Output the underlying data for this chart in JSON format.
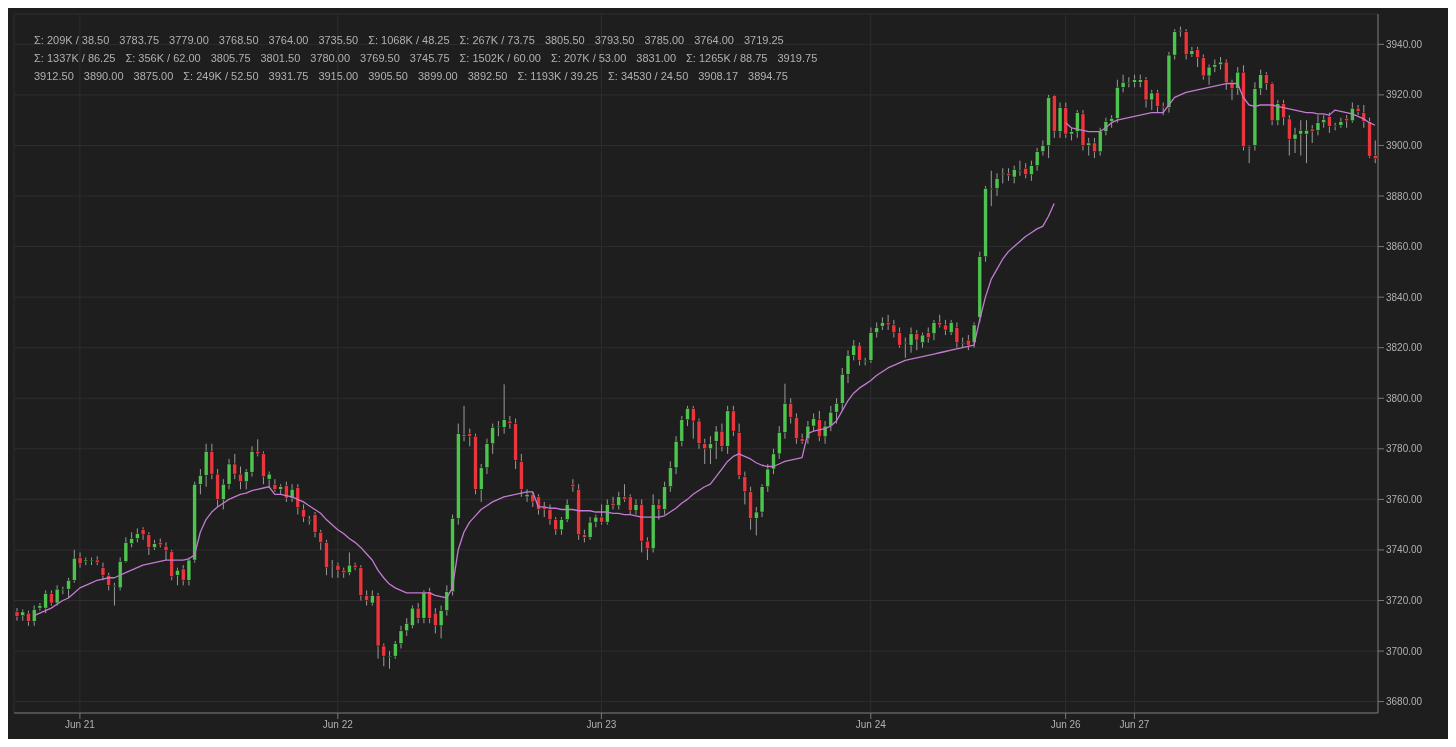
{
  "chart_data": {
    "type": "candlestick",
    "categories": [
      null,
      null,
      null,
      null,
      null,
      null,
      null,
      null,
      null,
      null,
      null,
      "Jun 21",
      null,
      null,
      null,
      null,
      null,
      null,
      null,
      null,
      null,
      null,
      null,
      null,
      null,
      null,
      null,
      null,
      null,
      null,
      null,
      null,
      null,
      null,
      null,
      null,
      null,
      null,
      null,
      null,
      null,
      null,
      null,
      null,
      null,
      null,
      null,
      null,
      null,
      null,
      null,
      null,
      null,
      null,
      null,
      null,
      "Jun 22",
      null,
      null,
      null,
      null,
      null,
      null,
      null,
      null,
      null,
      null,
      null,
      null,
      null,
      null,
      null,
      null,
      null,
      null,
      null,
      null,
      null,
      null,
      null,
      null,
      null,
      null,
      null,
      null,
      null,
      null,
      null,
      null,
      null,
      null,
      null,
      null,
      null,
      null,
      null,
      null,
      null,
      null,
      null,
      null,
      null,
      "Jun 23",
      null,
      null,
      null,
      null,
      null,
      null,
      null,
      null,
      null,
      null,
      null,
      null,
      null,
      null,
      null,
      null,
      null,
      null,
      null,
      null,
      null,
      null,
      null,
      null,
      null,
      null,
      null,
      null,
      null,
      null,
      null,
      null,
      null,
      null,
      null,
      null,
      null,
      null,
      null,
      null,
      null,
      null,
      null,
      null,
      null,
      null,
      "Jun 24",
      null,
      null,
      null,
      null,
      null,
      null,
      null,
      null,
      null,
      null,
      null,
      null,
      null,
      null,
      null,
      null,
      null,
      null,
      null,
      null,
      null,
      null,
      null,
      null,
      null,
      null,
      null,
      null,
      null,
      null,
      null,
      null,
      null,
      "Jun 26",
      null,
      null,
      null,
      null,
      null,
      null,
      null,
      null,
      null,
      null,
      null,
      "Jun 27",
      null,
      null,
      null,
      null,
      null,
      null,
      null,
      null,
      null,
      null,
      null,
      null,
      null,
      null,
      null,
      null,
      null,
      null,
      null,
      null,
      null,
      null,
      null,
      null,
      null,
      null,
      null,
      null,
      null,
      null,
      null,
      null,
      null,
      null,
      null,
      null,
      null,
      null,
      null,
      null,
      null,
      null
    ],
    "ohlc": [
      [
        3715.5,
        3717,
        3712,
        3713.75
      ],
      [
        3714,
        3716.5,
        3712,
        3715.5
      ],
      [
        3715,
        3716,
        3710,
        3711.75
      ],
      [
        3711.75,
        3718,
        3710,
        3716.5
      ],
      [
        3717,
        3719,
        3716,
        3718
      ],
      [
        3717,
        3724,
        3715,
        3722.75
      ],
      [
        3722.75,
        3724,
        3718,
        3719
      ],
      [
        3719,
        3726,
        3718,
        3724.5
      ],
      [
        3724,
        3725.5,
        3722.5,
        3724.25
      ],
      [
        3724.5,
        3729,
        3721,
        3728
      ],
      [
        3728,
        3740,
        3727,
        3736.75
      ],
      [
        3737,
        3739,
        3733,
        3734.5
      ],
      [
        3735.5,
        3737,
        3734,
        3736
      ],
      [
        3736,
        3737,
        3734,
        3736
      ],
      [
        3736,
        3737.5,
        3734,
        3735
      ],
      [
        3733,
        3735,
        3728,
        3730
      ],
      [
        3730,
        3731,
        3724,
        3726
      ],
      [
        3726,
        3727,
        3718,
        3726
      ],
      [
        3725,
        3737,
        3724,
        3735.5
      ],
      [
        3735.5,
        3745,
        3735,
        3743
      ],
      [
        3742.5,
        3747,
        3741,
        3744.5
      ],
      [
        3744.5,
        3748.5,
        3743,
        3746.5
      ],
      [
        3748,
        3749,
        3744,
        3746
      ],
      [
        3746,
        3747,
        3738,
        3741
      ],
      [
        3741,
        3744,
        3740,
        3742.5
      ],
      [
        3743,
        3744.5,
        3741,
        3742
      ],
      [
        3741.5,
        3743,
        3736,
        3739.75
      ],
      [
        3739.25,
        3740,
        3728,
        3729.5
      ],
      [
        3730,
        3733,
        3726,
        3732
      ],
      [
        3732.5,
        3734,
        3726,
        3728
      ],
      [
        3728,
        3737,
        3726,
        3736
      ],
      [
        3736,
        3767,
        3735,
        3766
      ],
      [
        3766,
        3772,
        3762,
        3769.5
      ],
      [
        3769.5,
        3782,
        3765,
        3779
      ],
      [
        3779,
        3782,
        3768,
        3770
      ],
      [
        3770,
        3772,
        3757,
        3760
      ],
      [
        3760,
        3768,
        3756,
        3766
      ],
      [
        3766,
        3776,
        3764,
        3774
      ],
      [
        3774,
        3778,
        3768,
        3770
      ],
      [
        3770,
        3773,
        3764,
        3767
      ],
      [
        3767,
        3772,
        3764,
        3771
      ],
      [
        3770.75,
        3781,
        3769,
        3779
      ],
      [
        3779,
        3783.75,
        3777,
        3778
      ],
      [
        3778,
        3779,
        3766,
        3769
      ],
      [
        3768,
        3771,
        3765,
        3770
      ],
      [
        3766,
        3768,
        3763,
        3764
      ],
      [
        3764,
        3766,
        3762,
        3765
      ],
      [
        3765.5,
        3767,
        3759,
        3760.5
      ],
      [
        3760.5,
        3766,
        3759,
        3764
      ],
      [
        3764.75,
        3766,
        3754,
        3756.75
      ],
      [
        3756,
        3758,
        3751,
        3753
      ],
      [
        3752,
        3753.5,
        3750,
        3752
      ],
      [
        3754,
        3755,
        3745,
        3747
      ],
      [
        3747,
        3748,
        3740,
        3743
      ],
      [
        3743,
        3744,
        3730,
        3733
      ],
      [
        3734,
        3736,
        3729,
        3734
      ],
      [
        3734,
        3735,
        3729,
        3732
      ],
      [
        3732,
        3733,
        3729,
        3731
      ],
      [
        3731,
        3739,
        3730,
        3734
      ],
      [
        3734,
        3735,
        3732,
        3733
      ],
      [
        3733,
        3734,
        3720,
        3722
      ],
      [
        3722,
        3724,
        3718,
        3720
      ],
      [
        3719,
        3724,
        3718,
        3722
      ],
      [
        3722,
        3723,
        3697,
        3702
      ],
      [
        3702,
        3703,
        3694,
        3698
      ],
      [
        3698,
        3700,
        3693,
        3698
      ],
      [
        3698,
        3704,
        3697,
        3703
      ],
      [
        3703,
        3710,
        3701,
        3708
      ],
      [
        3708,
        3713,
        3706,
        3711
      ],
      [
        3710,
        3718,
        3709,
        3717
      ],
      [
        3717,
        3719,
        3711,
        3713
      ],
      [
        3713,
        3724,
        3711,
        3723
      ],
      [
        3723.5,
        3725,
        3711,
        3713
      ],
      [
        3715,
        3717,
        3707,
        3710
      ],
      [
        3710,
        3718,
        3705,
        3716
      ],
      [
        3716,
        3726,
        3714,
        3723.5
      ],
      [
        3723.5,
        3754,
        3722,
        3752.5
      ],
      [
        3752.5,
        3790,
        3750,
        3786
      ],
      [
        3785,
        3797,
        3783,
        3785.5
      ],
      [
        3786,
        3788,
        3781,
        3785
      ],
      [
        3785,
        3786,
        3762,
        3764
      ],
      [
        3764,
        3774,
        3759,
        3772.5
      ],
      [
        3772.5,
        3784,
        3770,
        3782
      ],
      [
        3782,
        3790,
        3778,
        3788.5
      ],
      [
        3789,
        3791,
        3785,
        3789
      ],
      [
        3788.5,
        3805.5,
        3786,
        3791.5
      ],
      [
        3791,
        3793,
        3788,
        3790
      ],
      [
        3790,
        3792,
        3772,
        3775.5
      ],
      [
        3775,
        3778,
        3761,
        3764
      ],
      [
        3761,
        3764,
        3759,
        3762
      ],
      [
        3762,
        3763,
        3757,
        3759
      ],
      [
        3761,
        3762,
        3754,
        3756
      ],
      [
        3757,
        3759,
        3753,
        3756
      ],
      [
        3756,
        3758,
        3750,
        3752
      ],
      [
        3752,
        3753,
        3746,
        3748
      ],
      [
        3748,
        3753,
        3746,
        3752
      ],
      [
        3752,
        3760,
        3751,
        3758
      ],
      [
        3766,
        3768,
        3763,
        3765
      ],
      [
        3764,
        3766,
        3744,
        3746
      ],
      [
        3746,
        3748,
        3743,
        3745
      ],
      [
        3745,
        3753,
        3744,
        3751
      ],
      [
        3751,
        3754,
        3749,
        3753
      ],
      [
        3753,
        3758,
        3750,
        3751
      ],
      [
        3751,
        3760,
        3750,
        3758
      ],
      [
        3758.5,
        3761,
        3756,
        3757.5
      ],
      [
        3757.5,
        3763,
        3756,
        3761
      ],
      [
        3761,
        3766,
        3759,
        3760
      ],
      [
        3761,
        3762,
        3754,
        3755.5
      ],
      [
        3755.5,
        3760,
        3754,
        3758
      ],
      [
        3758,
        3760,
        3739,
        3743.5
      ],
      [
        3743.5,
        3745,
        3736,
        3740.5
      ],
      [
        3740.5,
        3762,
        3739,
        3758
      ],
      [
        3758,
        3760,
        3752,
        3756
      ],
      [
        3756,
        3767,
        3754,
        3765
      ],
      [
        3765,
        3775,
        3763,
        3772.5
      ],
      [
        3772.5,
        3785,
        3770,
        3783
      ],
      [
        3783,
        3793,
        3781,
        3791.5
      ],
      [
        3791.5,
        3797,
        3789,
        3796
      ],
      [
        3796,
        3797,
        3784,
        3791
      ],
      [
        3791,
        3792,
        3780,
        3782
      ],
      [
        3782,
        3784,
        3774,
        3780
      ],
      [
        3780,
        3785,
        3774,
        3782
      ],
      [
        3783,
        3789,
        3776,
        3787
      ],
      [
        3787,
        3790,
        3779,
        3781
      ],
      [
        3781,
        3797,
        3778,
        3795
      ],
      [
        3795,
        3797,
        3785,
        3787
      ],
      [
        3786.5,
        3790,
        3768,
        3769.5
      ],
      [
        3769,
        3771,
        3758,
        3763
      ],
      [
        3763,
        3765,
        3748,
        3752.5
      ],
      [
        3752.5,
        3757,
        3745.75,
        3755
      ],
      [
        3755,
        3766,
        3753,
        3765
      ],
      [
        3765,
        3774,
        3763,
        3772
      ],
      [
        3772,
        3780,
        3770,
        3778
      ],
      [
        3778,
        3789,
        3776,
        3786.5
      ],
      [
        3786.5,
        3805.75,
        3784,
        3798
      ],
      [
        3798,
        3800,
        3790,
        3792.5
      ],
      [
        3792.5,
        3794,
        3782,
        3784
      ],
      [
        3784,
        3786,
        3782,
        3783
      ],
      [
        3784,
        3791,
        3782,
        3789
      ],
      [
        3789,
        3794,
        3787,
        3792
      ],
      [
        3791.5,
        3795,
        3783,
        3784.75
      ],
      [
        3784.75,
        3791,
        3782,
        3789
      ],
      [
        3789,
        3797,
        3787,
        3794.5
      ],
      [
        3794.5,
        3800,
        3790,
        3798
      ],
      [
        3798,
        3812,
        3795,
        3809.5
      ],
      [
        3809.5,
        3819,
        3806,
        3817
      ],
      [
        3817,
        3823,
        3815,
        3821
      ],
      [
        3821,
        3822,
        3813,
        3815
      ],
      [
        3815,
        3816,
        3813,
        3815
      ],
      [
        3815,
        3828,
        3814,
        3826
      ],
      [
        3826,
        3830,
        3824,
        3828
      ],
      [
        3828.5,
        3832,
        3827,
        3830
      ],
      [
        3830,
        3833,
        3827,
        3829
      ],
      [
        3829,
        3831,
        3824,
        3826
      ],
      [
        3826,
        3828,
        3820,
        3821
      ],
      [
        3822,
        3824,
        3816,
        3822
      ],
      [
        3821,
        3828,
        3818,
        3825.5
      ],
      [
        3825.5,
        3827,
        3819,
        3823
      ],
      [
        3822,
        3826,
        3820,
        3825
      ],
      [
        3826,
        3828,
        3822,
        3824
      ],
      [
        3825.5,
        3831,
        3823,
        3830
      ],
      [
        3830,
        3833,
        3828,
        3829
      ],
      [
        3829,
        3831,
        3825,
        3827
      ],
      [
        3826,
        3831,
        3825,
        3830
      ],
      [
        3828,
        3830,
        3820,
        3822
      ],
      [
        3822,
        3824,
        3820,
        3822
      ],
      [
        3823,
        3825,
        3819,
        3821
      ],
      [
        3822,
        3830,
        3820,
        3829
      ],
      [
        3832,
        3858,
        3830,
        3856
      ],
      [
        3856,
        3884,
        3854,
        3883
      ],
      [
        3883,
        3890,
        3876,
        3883
      ],
      [
        3883,
        3889,
        3880,
        3887
      ],
      [
        3888.5,
        3891,
        3885,
        3889
      ],
      [
        3889,
        3891,
        3886,
        3888
      ],
      [
        3887.5,
        3892,
        3885,
        3890.5
      ],
      [
        3890,
        3894,
        3888,
        3890
      ],
      [
        3891,
        3893,
        3887,
        3888.5
      ],
      [
        3888.5,
        3894,
        3886,
        3892
      ],
      [
        3892,
        3899,
        3890,
        3897.5
      ],
      [
        3897.5,
        3902,
        3896,
        3900
      ],
      [
        3900,
        3920,
        3895,
        3919
      ],
      [
        3919.75,
        3920,
        3903,
        3905.5
      ],
      [
        3905.5,
        3917,
        3903,
        3915
      ],
      [
        3915,
        3917,
        3903,
        3904.5
      ],
      [
        3904.5,
        3907,
        3902,
        3905.5
      ],
      [
        3905.5,
        3914,
        3903,
        3913
      ],
      [
        3912.5,
        3914,
        3898,
        3900
      ],
      [
        3900,
        3903,
        3896,
        3901
      ],
      [
        3901,
        3903,
        3895,
        3897.5
      ],
      [
        3897.5,
        3907,
        3896,
        3905.5
      ],
      [
        3905.5,
        3911,
        3904,
        3909.5
      ],
      [
        3909.5,
        3912,
        3907,
        3910.75
      ],
      [
        3910.75,
        3926,
        3909,
        3923
      ],
      [
        3923,
        3928,
        3921,
        3925
      ],
      [
        3925,
        3927,
        3923,
        3925
      ],
      [
        3925,
        3928,
        3923,
        3926
      ],
      [
        3925,
        3928,
        3923,
        3926
      ],
      [
        3926,
        3927,
        3915,
        3918
      ],
      [
        3918,
        3922,
        3914,
        3920.75
      ],
      [
        3921,
        3922,
        3913,
        3915.5
      ],
      [
        3915.5,
        3917,
        3912,
        3915
      ],
      [
        3915,
        3937,
        3913,
        3935.75
      ],
      [
        3935.75,
        3946,
        3934,
        3945
      ],
      [
        3945,
        3947,
        3943,
        3945.5
      ],
      [
        3945,
        3946,
        3934,
        3936
      ],
      [
        3936,
        3939,
        3935,
        3937.5
      ],
      [
        3938,
        3939,
        3931,
        3934.75
      ],
      [
        3934.75,
        3936,
        3926,
        3927.5
      ],
      [
        3927.5,
        3932,
        3924,
        3931
      ],
      [
        3931,
        3934,
        3929,
        3932
      ],
      [
        3932,
        3935,
        3930,
        3933
      ],
      [
        3933,
        3934,
        3922,
        3925
      ],
      [
        3925,
        3926,
        3918,
        3922.5
      ],
      [
        3922.5,
        3931,
        3920,
        3929
      ],
      [
        3929,
        3931.75,
        3898,
        3899.5
      ],
      [
        3899.5,
        3900,
        3893,
        3899
      ],
      [
        3900,
        3925,
        3898,
        3922.5
      ],
      [
        3922.5,
        3930,
        3920,
        3928
      ],
      [
        3928,
        3929,
        3922,
        3924.5
      ],
      [
        3924.5,
        3925,
        3908,
        3909.75
      ],
      [
        3909.75,
        3918,
        3908,
        3916.5
      ],
      [
        3916.5,
        3918,
        3908,
        3911
      ],
      [
        3910.5,
        3912,
        3896,
        3902.5
      ],
      [
        3902.5,
        3907,
        3897,
        3904.5
      ],
      [
        3904.5,
        3910,
        3896,
        3906
      ],
      [
        3904.5,
        3910,
        3893,
        3906
      ],
      [
        3906.5,
        3908,
        3901,
        3905.5
      ],
      [
        3906,
        3912,
        3904,
        3909
      ],
      [
        3909,
        3912,
        3907,
        3910.25
      ],
      [
        3911.5,
        3913,
        3905,
        3907.5
      ],
      [
        3908,
        3909,
        3906,
        3908
      ],
      [
        3908,
        3911,
        3907,
        3909.5
      ],
      [
        3910.75,
        3912,
        3907,
        3909.75
      ],
      [
        3909.75,
        3917,
        3909,
        3914.75
      ],
      [
        3914.75,
        3916,
        3912,
        3913.5
      ],
      [
        3913,
        3916,
        3907,
        3909.5
      ],
      [
        3909.5,
        3911,
        3895,
        3895.75
      ],
      [
        3896,
        3902,
        3893,
        3894.75
      ]
    ],
    "colors": [
      "#e8363c",
      "#4fc34f",
      "#e8363c",
      "#4fc34f",
      "#4fc34f",
      "#4fc34f",
      "#e8363c",
      "#4fc34f",
      "#4fc34f",
      "#4fc34f",
      "#4fc34f",
      "#e8363c",
      "#4fc34f",
      "#4fc34f",
      "#e8363c",
      "#e8363c",
      "#e8363c",
      "#4fc34f",
      "#4fc34f",
      "#4fc34f",
      "#4fc34f",
      "#4fc34f",
      "#e8363c",
      "#e8363c",
      "#4fc34f",
      "#e8363c",
      "#e8363c",
      "#e8363c",
      "#4fc34f",
      "#e8363c",
      "#4fc34f",
      "#4fc34f",
      "#4fc34f",
      "#4fc34f",
      "#e8363c",
      "#e8363c",
      "#4fc34f",
      "#4fc34f",
      "#e8363c",
      "#e8363c",
      "#4fc34f",
      "#4fc34f",
      "#e8363c",
      "#e8363c",
      "#4fc34f",
      "#e8363c",
      "#4fc34f",
      "#e8363c",
      "#4fc34f",
      "#e8363c",
      "#e8363c",
      "#4fc34f",
      "#e8363c",
      "#e8363c",
      "#e8363c",
      "#4fc34f",
      "#e8363c",
      "#e8363c",
      "#4fc34f",
      "#e8363c",
      "#e8363c",
      "#e8363c",
      "#4fc34f",
      "#e8363c",
      "#e8363c",
      "#4fc34f",
      "#4fc34f",
      "#4fc34f",
      "#4fc34f",
      "#4fc34f",
      "#e8363c",
      "#4fc34f",
      "#e8363c",
      "#e8363c",
      "#4fc34f",
      "#4fc34f",
      "#4fc34f",
      "#4fc34f",
      "#4fc34f",
      "#e8363c",
      "#e8363c",
      "#4fc34f",
      "#4fc34f",
      "#4fc34f",
      "#4fc34f",
      "#4fc34f",
      "#e8363c",
      "#e8363c",
      "#e8363c",
      "#4fc34f",
      "#e8363c",
      "#e8363c",
      "#e8363c",
      "#e8363c",
      "#e8363c",
      "#4fc34f",
      "#4fc34f",
      "#e8363c",
      "#e8363c",
      "#e8363c",
      "#4fc34f",
      "#4fc34f",
      "#e8363c",
      "#4fc34f",
      "#e8363c",
      "#4fc34f",
      "#e8363c",
      "#e8363c",
      "#4fc34f",
      "#e8363c",
      "#e8363c",
      "#4fc34f",
      "#e8363c",
      "#4fc34f",
      "#4fc34f",
      "#4fc34f",
      "#4fc34f",
      "#4fc34f",
      "#e8363c",
      "#e8363c",
      "#e8363c",
      "#4fc34f",
      "#4fc34f",
      "#e8363c",
      "#4fc34f",
      "#e8363c",
      "#e8363c",
      "#e8363c",
      "#e8363c",
      "#4fc34f",
      "#4fc34f",
      "#4fc34f",
      "#4fc34f",
      "#4fc34f",
      "#4fc34f",
      "#e8363c",
      "#e8363c",
      "#e8363c",
      "#4fc34f",
      "#4fc34f",
      "#e8363c",
      "#4fc34f",
      "#4fc34f",
      "#4fc34f",
      "#4fc34f",
      "#4fc34f",
      "#4fc34f",
      "#e8363c",
      "#4fc34f",
      "#4fc34f",
      "#4fc34f",
      "#4fc34f",
      "#e8363c",
      "#e8363c",
      "#e8363c",
      "#4fc34f",
      "#4fc34f",
      "#e8363c",
      "#4fc34f",
      "#e8363c",
      "#4fc34f",
      "#e8363c",
      "#e8363c",
      "#4fc34f",
      "#e8363c",
      "#4fc34f",
      "#e8363c",
      "#4fc34f",
      "#4fc34f",
      "#4fc34f",
      "#4fc34f",
      "#4fc34f",
      "#4fc34f",
      "#e8363c",
      "#4fc34f",
      "#4fc34f",
      "#e8363c",
      "#4fc34f",
      "#4fc34f",
      "#4fc34f",
      "#4fc34f",
      "#e8363c",
      "#4fc34f",
      "#e8363c",
      "#4fc34f",
      "#4fc34f",
      "#e8363c",
      "#4fc34f",
      "#e8363c",
      "#4fc34f",
      "#4fc34f",
      "#4fc34f",
      "#4fc34f",
      "#4fc34f",
      "#4fc34f",
      "#4fc34f",
      "#4fc34f",
      "#e8363c",
      "#4fc34f",
      "#e8363c",
      "#e8363c",
      "#4fc34f",
      "#4fc34f",
      "#4fc34f",
      "#e8363c",
      "#4fc34f",
      "#e8363c",
      "#e8363c",
      "#4fc34f",
      "#4fc34f",
      "#4fc34f",
      "#e8363c",
      "#e8363c",
      "#4fc34f",
      "#e8363c",
      "#e8363c",
      "#4fc34f",
      "#4fc34f",
      "#e8363c",
      "#e8363c",
      "#4fc34f",
      "#e8363c",
      "#e8363c",
      "#4fc34f",
      "#4fc34f",
      "#4fc34f",
      "#e8363c",
      "#4fc34f",
      "#4fc34f",
      "#e8363c",
      "#4fc34f",
      "#4fc34f",
      "#e8363c",
      "#4fc34f",
      "#e8363c",
      "#e8363c",
      "#e8363c",
      "#e8363c"
    ],
    "series": [
      {
        "type": "line",
        "color": "#c27bd0",
        "values": [
          null,
          null,
          null,
          3714,
          3715,
          3716,
          3717,
          3718.5,
          3720,
          3721,
          3723,
          3725,
          3726,
          3727,
          3728,
          3728.5,
          3729,
          3729,
          3730,
          3731,
          3732,
          3733,
          3734,
          3734.5,
          3735,
          3735.5,
          3736,
          3736,
          3736,
          3736,
          3736.5,
          3738,
          3747,
          3752,
          3755,
          3757,
          3758.5,
          3760,
          3761,
          3762,
          3762.5,
          3763.5,
          3764,
          3764.5,
          3765,
          3762,
          3762,
          3761.5,
          3761,
          3760,
          3759,
          3757.5,
          3756,
          3754.5,
          3752,
          3750,
          3748,
          3746.5,
          3744.5,
          3743,
          3741,
          3738.5,
          3736,
          3732,
          3729,
          3726.5,
          3725,
          3724,
          3723,
          3723,
          3723,
          3723,
          3723,
          3722,
          3721.5,
          3721,
          3725,
          3740,
          3747,
          3751,
          3753.5,
          3756,
          3757.5,
          3759,
          3760,
          3761,
          3761.5,
          3762,
          3762.5,
          3763,
          3763,
          3757,
          3757,
          3756.5,
          3756.5,
          3756,
          3756,
          3756,
          3755.5,
          3755.5,
          3755.5,
          3755,
          3755,
          3755,
          3754.5,
          3754.5,
          3754,
          3754,
          3753.5,
          3753,
          3753,
          3753,
          3753,
          3753.5,
          3755,
          3756.5,
          3758.5,
          3760,
          3762,
          3763.5,
          3765,
          3766,
          3769,
          3772,
          3775,
          3777,
          3778,
          3777,
          3776,
          3774.5,
          3773.5,
          3773,
          3773,
          3774,
          3775,
          3775.5,
          3776,
          3776.5,
          3786,
          3787,
          3787.5,
          3788,
          3789,
          3791,
          3795,
          3799,
          3802,
          3804,
          3805.5,
          3807,
          3809,
          3810.5,
          3812,
          3813,
          3814,
          3815,
          3815.5,
          3816,
          3816.5,
          3817,
          3817.5,
          3818,
          3818.5,
          3819,
          3819.5,
          3820,
          3820.5,
          3821,
          3831,
          3840,
          3847,
          3851,
          3855,
          3858,
          3860,
          3862,
          3864,
          3865.5,
          3867,
          3868,
          3872,
          3877,
          null,
          3909,
          3907,
          3906.5,
          3906,
          3905.5,
          3905.5,
          3905.5,
          3907,
          3909,
          3910,
          3910.5,
          3911,
          3911.5,
          3912,
          3912.5,
          3913,
          3913,
          3913,
          3916,
          3919,
          3920,
          3921,
          3921.5,
          3922,
          3922.5,
          3923,
          3923.5,
          3924,
          3924.5,
          3924.5,
          3924.5,
          3919,
          3916,
          3915.5,
          3916,
          3916,
          3916,
          3915.5,
          3915,
          3914.5,
          3914,
          3913.5,
          3913,
          3913,
          3912.5,
          3912.5,
          3912,
          3914,
          3913.5,
          3913,
          3912.5,
          3911.5,
          3910.5,
          3909,
          3908
        ]
      }
    ],
    "marker": "none",
    "ylim": [
      3675.5,
      3952
    ],
    "yticks": [
      {
        "value": 3680,
        "label": "3680.00"
      },
      {
        "value": 3700,
        "label": "3700.00"
      },
      {
        "value": 3720,
        "label": "3720.00"
      },
      {
        "value": 3740,
        "label": "3740.00"
      },
      {
        "value": 3760,
        "label": "3760.00"
      },
      {
        "value": 3780,
        "label": "3780.00"
      },
      {
        "value": 3800,
        "label": "3800.00"
      },
      {
        "value": 3820,
        "label": "3820.00"
      },
      {
        "value": 3840,
        "label": "3840.00"
      },
      {
        "value": 3860,
        "label": "3860.00"
      },
      {
        "value": 3880,
        "label": "3880.00"
      },
      {
        "value": 3900,
        "label": "3900.00"
      },
      {
        "value": 3920,
        "label": "3920.00"
      },
      {
        "value": 3940,
        "label": "3940.00"
      }
    ],
    "grid": true,
    "annotations": [
      "Σ: 209K / 38.50",
      "3783.75",
      "3779.00",
      "3768.50",
      "3764.00",
      "3735.50",
      "Σ: 1068K / 48.25",
      "Σ: 267K / 73.75",
      "3805.50",
      "3793.50",
      "3785.00",
      "3764.00",
      "3719.25",
      "Σ: 1337K / 86.25",
      "Σ: 356K / 62.00",
      "3805.75",
      "3801.50",
      "3780.00",
      "3769.50",
      "3745.75",
      "Σ: 1502K / 60.00",
      "Σ: 207K / 53.00",
      "3831.00",
      "Σ: 1265K / 88.75",
      "3919.75",
      "3912.50",
      "3890.00",
      "3875.00",
      "Σ: 249K / 52.50",
      "3931.75",
      "3915.00",
      "3905.50",
      "3899.00",
      "3892.50",
      "Σ: 1193K / 39.25",
      "Σ: 34530 / 24.50",
      "3908.17",
      "3894.75"
    ]
  }
}
